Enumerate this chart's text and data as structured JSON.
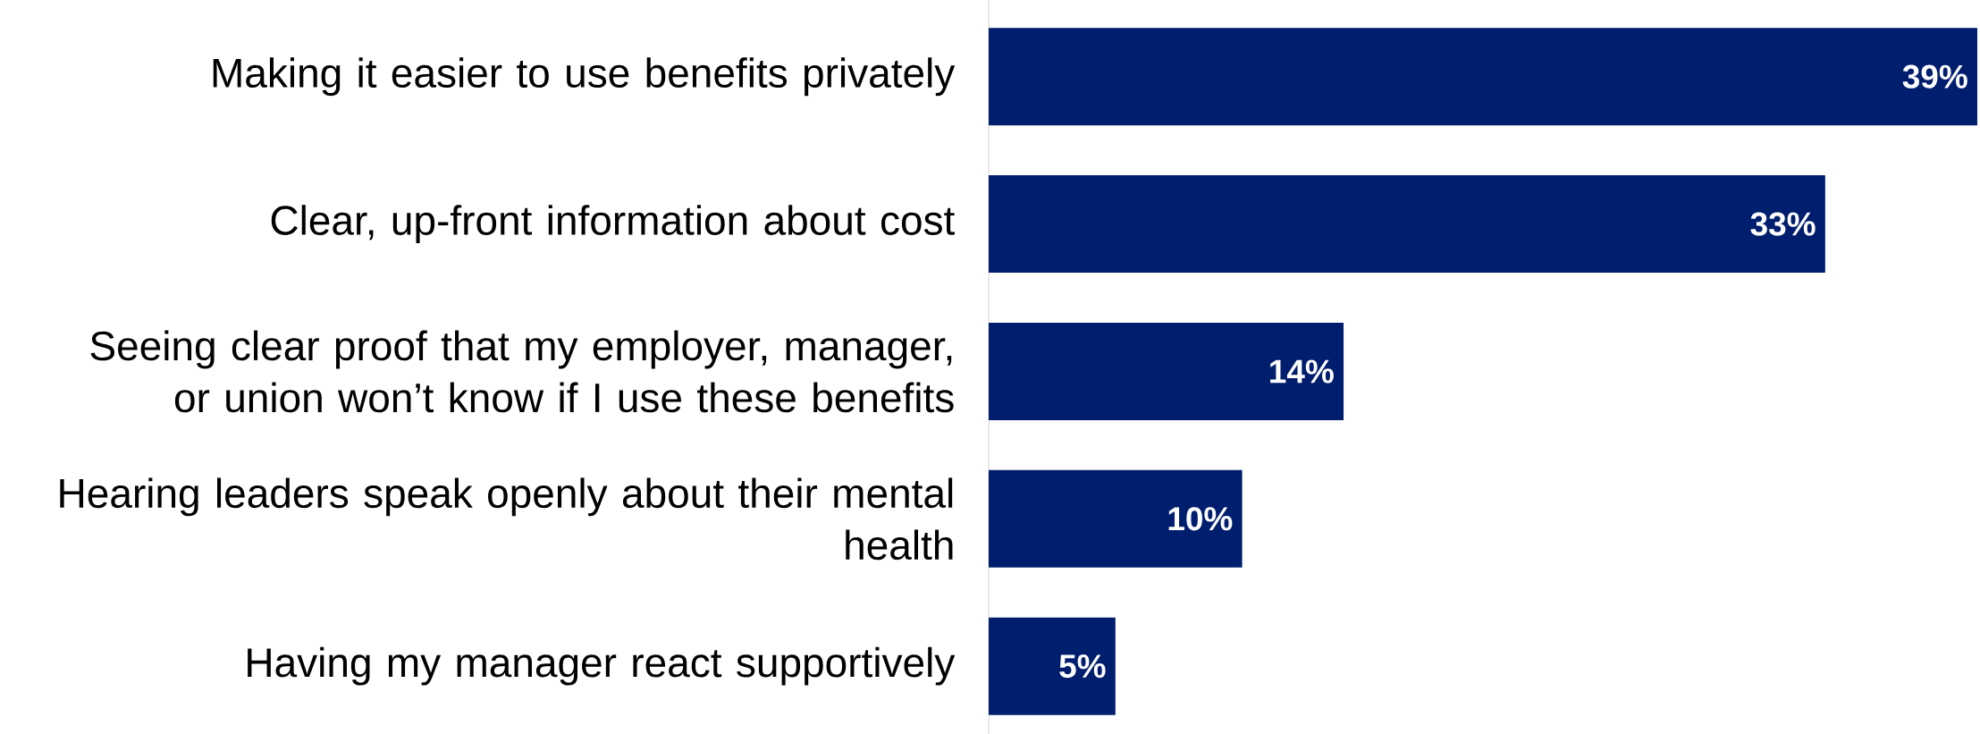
{
  "chart_data": {
    "type": "bar",
    "orientation": "horizontal",
    "categories": [
      "Making it easier to use benefits privately",
      "Clear, up-front information about cost",
      "Seeing clear proof that my employer, manager, or union won’t know if I use these benefits",
      "Hearing leaders speak openly about their mental health",
      "Having my manager react supportively"
    ],
    "values": [
      39,
      33,
      14,
      10,
      5
    ],
    "value_labels": [
      "39%",
      "33%",
      "14%",
      "10%",
      "5%"
    ],
    "color": "#001e6e"
  }
}
